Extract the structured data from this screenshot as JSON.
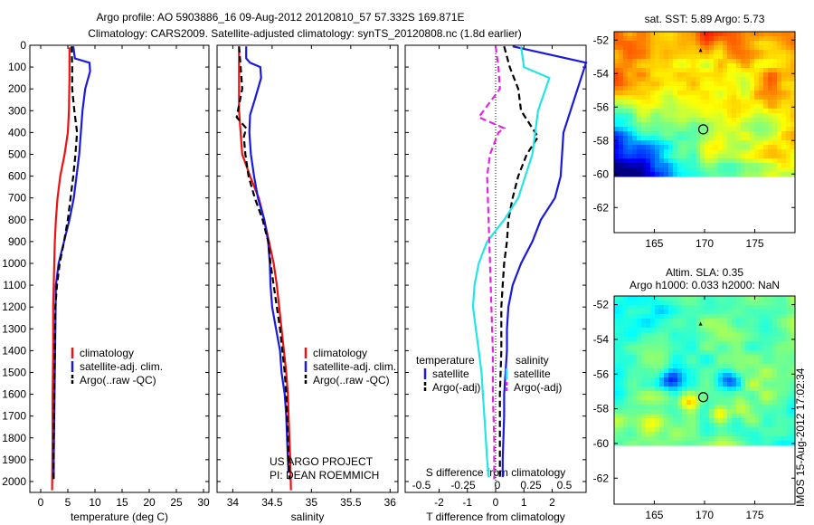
{
  "header": {
    "line1": "Argo profile: AO 5903886_16 09-Aug-2012 20120810_57 57.332S 169.871E",
    "line2": "Climatology: CARS2009. Satellite-adjusted climatology: synTS_20120808.nc (1.8d earlier)"
  },
  "credit": {
    "line1": "US ARGO PROJECT",
    "line2": "PI: DEAN ROEMMICH"
  },
  "side_stamp": "IMOS 15-Aug-2012 17:02:34",
  "colors": {
    "red": "#ee1111",
    "blue": "#1a1adc",
    "black": "#000000",
    "cyan": "#22e6e6",
    "magenta": "#e622e6"
  },
  "chart_data": [
    {
      "type": "line",
      "id": "temperature",
      "xlabel": "temperature (deg C)",
      "xlim": [
        -2,
        31
      ],
      "xticks": [
        "0",
        "5",
        "10",
        "15",
        "20",
        "25",
        "30"
      ],
      "ylim": [
        2050,
        0
      ],
      "yticks": [
        "0",
        "100",
        "200",
        "300",
        "400",
        "500",
        "600",
        "700",
        "800",
        "900",
        "1000",
        "1100",
        "1200",
        "1300",
        "1400",
        "1500",
        "1600",
        "1700",
        "1800",
        "1900",
        "2000"
      ],
      "legend": [
        "climatology",
        "satellite-adj. clim.",
        "Argo(..raw -QC)"
      ],
      "legend_position": "center",
      "series": [
        {
          "name": "climatology",
          "color": "red",
          "dash": false,
          "points": [
            [
              5.3,
              10
            ],
            [
              5.3,
              150
            ],
            [
              5.2,
              300
            ],
            [
              5.0,
              400
            ],
            [
              4.4,
              500
            ],
            [
              3.6,
              600
            ],
            [
              3.1,
              700
            ],
            [
              2.8,
              800
            ],
            [
              2.6,
              900
            ],
            [
              2.5,
              1000
            ],
            [
              2.4,
              1100
            ],
            [
              2.3,
              1200
            ],
            [
              2.3,
              1400
            ],
            [
              2.2,
              1600
            ],
            [
              2.2,
              1800
            ],
            [
              2.1,
              2040
            ]
          ]
        },
        {
          "name": "satellite-adj. clim.",
          "color": "blue",
          "dash": false,
          "points": [
            [
              6.0,
              5
            ],
            [
              6.3,
              60
            ],
            [
              9.0,
              80
            ],
            [
              9.1,
              120
            ],
            [
              8.2,
              200
            ],
            [
              7.7,
              300
            ],
            [
              7.4,
              400
            ],
            [
              7.1,
              500
            ],
            [
              6.6,
              600
            ],
            [
              6.1,
              700
            ],
            [
              5.3,
              800
            ],
            [
              4.3,
              900
            ],
            [
              3.3,
              1000
            ],
            [
              2.8,
              1100
            ],
            [
              2.7,
              1300
            ],
            [
              2.6,
              1500
            ],
            [
              2.5,
              1700
            ],
            [
              2.4,
              1900
            ],
            [
              2.4,
              1980
            ]
          ]
        },
        {
          "name": "Argo(..raw -QC)",
          "color": "black",
          "dash": true,
          "points": [
            [
              5.7,
              5
            ],
            [
              5.8,
              100
            ],
            [
              5.8,
              200
            ],
            [
              6.2,
              300
            ],
            [
              6.7,
              400
            ],
            [
              6.4,
              500
            ],
            [
              6.0,
              600
            ],
            [
              5.5,
              700
            ],
            [
              5.0,
              800
            ],
            [
              4.3,
              900
            ],
            [
              3.5,
              1000
            ],
            [
              3.0,
              1100
            ],
            [
              2.7,
              1200
            ],
            [
              2.6,
              1400
            ],
            [
              2.5,
              1600
            ],
            [
              2.4,
              1800
            ],
            [
              2.4,
              1990
            ]
          ]
        }
      ]
    },
    {
      "type": "line",
      "id": "salinity",
      "xlabel": "salinity",
      "xlim": [
        33.8,
        36.1
      ],
      "xticks": [
        "34",
        "34.5",
        "35",
        "35.5",
        "36"
      ],
      "ylim": [
        2050,
        0
      ],
      "legend": [
        "climatology",
        "satellite-adj. clim.",
        "Argo(..raw -QC)"
      ],
      "legend_position": "center",
      "series": [
        {
          "name": "climatology",
          "color": "red",
          "dash": false,
          "points": [
            [
              34.08,
              10
            ],
            [
              34.08,
              300
            ],
            [
              34.12,
              500
            ],
            [
              34.22,
              600
            ],
            [
              34.33,
              700
            ],
            [
              34.4,
              800
            ],
            [
              34.46,
              900
            ],
            [
              34.52,
              1000
            ],
            [
              34.56,
              1100
            ],
            [
              34.59,
              1200
            ],
            [
              34.62,
              1300
            ],
            [
              34.65,
              1400
            ],
            [
              34.68,
              1500
            ],
            [
              34.7,
              1600
            ],
            [
              34.71,
              1700
            ],
            [
              34.72,
              1800
            ],
            [
              34.73,
              1900
            ],
            [
              34.74,
              2040
            ]
          ]
        },
        {
          "name": "satellite-adj. clim.",
          "color": "blue",
          "dash": false,
          "points": [
            [
              34.17,
              5
            ],
            [
              34.17,
              60
            ],
            [
              34.22,
              80
            ],
            [
              34.35,
              100
            ],
            [
              34.36,
              150
            ],
            [
              34.28,
              250
            ],
            [
              34.22,
              320
            ],
            [
              34.21,
              400
            ],
            [
              34.23,
              500
            ],
            [
              34.27,
              600
            ],
            [
              34.32,
              700
            ],
            [
              34.4,
              800
            ],
            [
              34.45,
              900
            ],
            [
              34.47,
              1000
            ],
            [
              34.48,
              1100
            ],
            [
              34.5,
              1200
            ],
            [
              34.55,
              1300
            ],
            [
              34.6,
              1400
            ],
            [
              34.62,
              1500
            ],
            [
              34.66,
              1600
            ],
            [
              34.68,
              1700
            ],
            [
              34.69,
              1800
            ],
            [
              34.7,
              1900
            ],
            [
              34.71,
              1960
            ]
          ]
        },
        {
          "name": "Argo(..raw -QC)",
          "color": "black",
          "dash": true,
          "points": [
            [
              34.08,
              5
            ],
            [
              34.1,
              100
            ],
            [
              34.12,
              200
            ],
            [
              34.05,
              330
            ],
            [
              34.17,
              380
            ],
            [
              34.14,
              420
            ],
            [
              34.16,
              500
            ],
            [
              34.2,
              600
            ],
            [
              34.28,
              700
            ],
            [
              34.38,
              800
            ],
            [
              34.45,
              900
            ],
            [
              34.48,
              1000
            ],
            [
              34.52,
              1100
            ],
            [
              34.56,
              1200
            ],
            [
              34.6,
              1300
            ],
            [
              34.63,
              1400
            ],
            [
              34.66,
              1500
            ],
            [
              34.68,
              1600
            ],
            [
              34.69,
              1700
            ],
            [
              34.7,
              1800
            ],
            [
              34.71,
              1900
            ],
            [
              34.72,
              1990
            ]
          ]
        }
      ]
    },
    {
      "type": "line",
      "id": "difference",
      "xlabel": "T difference from climatology",
      "xlabel2": "S difference from climatology",
      "xlim": [
        -3.2,
        3.2
      ],
      "xticks": [
        "-2",
        "-1",
        "0",
        "1",
        "2"
      ],
      "xticks2": [
        "-0.5",
        "-0.25",
        "0",
        "0.25",
        "0.5"
      ],
      "ylim": [
        2050,
        0
      ],
      "legend_groups": [
        {
          "title": "temperature",
          "items": [
            "satellite",
            "Argo(-adj)"
          ]
        },
        {
          "title": "salinity",
          "items": [
            "satellite",
            "Argo(-adj)"
          ]
        }
      ],
      "series": [
        {
          "name": "temperature satellite",
          "color": "blue",
          "dash": false,
          "points": [
            [
              0.6,
              5
            ],
            [
              3.2,
              80
            ],
            [
              2.9,
              200
            ],
            [
              2.4,
              400
            ],
            [
              2.3,
              600
            ],
            [
              2.1,
              700
            ],
            [
              1.6,
              800
            ],
            [
              1.3,
              900
            ],
            [
              0.9,
              1000
            ],
            [
              0.6,
              1100
            ],
            [
              0.45,
              1200
            ],
            [
              0.4,
              1300
            ],
            [
              0.4,
              1400
            ],
            [
              0.3,
              1600
            ],
            [
              0.3,
              1700
            ],
            [
              0.25,
              1900
            ],
            [
              0.25,
              1980
            ]
          ]
        },
        {
          "name": "temperature Argo(-adj)",
          "color": "black",
          "dash": true,
          "points": [
            [
              0.3,
              5
            ],
            [
              0.5,
              100
            ],
            [
              0.8,
              200
            ],
            [
              0.9,
              300
            ],
            [
              1.5,
              420
            ],
            [
              1.1,
              500
            ],
            [
              0.8,
              600
            ],
            [
              0.6,
              700
            ],
            [
              0.45,
              800
            ],
            [
              0.4,
              900
            ],
            [
              0.3,
              1000
            ],
            [
              0.25,
              1100
            ],
            [
              0.2,
              1200
            ],
            [
              0.2,
              1400
            ],
            [
              0.15,
              1600
            ],
            [
              0.15,
              1800
            ],
            [
              0.15,
              1990
            ]
          ]
        },
        {
          "name": "salinity satellite",
          "color": "cyan",
          "dash": false,
          "points": [
            [
              0.9,
              5
            ],
            [
              1.0,
              100
            ],
            [
              1.9,
              150
            ],
            [
              1.5,
              300
            ],
            [
              1.3,
              500
            ],
            [
              0.8,
              700
            ],
            [
              0.3,
              800
            ],
            [
              -0.3,
              900
            ],
            [
              -0.6,
              1000
            ],
            [
              -0.75,
              1100
            ],
            [
              -0.8,
              1200
            ],
            [
              -0.7,
              1300
            ],
            [
              -0.6,
              1400
            ],
            [
              -0.5,
              1500
            ],
            [
              -0.45,
              1600
            ],
            [
              -0.4,
              1700
            ],
            [
              -0.35,
              1800
            ],
            [
              -0.3,
              1900
            ],
            [
              -0.25,
              1980
            ]
          ]
        },
        {
          "name": "salinity Argo(-adj)",
          "color": "magenta",
          "dash": true,
          "points": [
            [
              0.0,
              5
            ],
            [
              0.1,
              100
            ],
            [
              0.15,
              200
            ],
            [
              -0.6,
              330
            ],
            [
              0.3,
              380
            ],
            [
              0.1,
              400
            ],
            [
              -0.2,
              500
            ],
            [
              -0.3,
              600
            ],
            [
              -0.25,
              800
            ],
            [
              -0.2,
              1000
            ],
            [
              -0.15,
              1200
            ],
            [
              -0.1,
              1400
            ],
            [
              -0.1,
              1600
            ],
            [
              -0.05,
              1800
            ],
            [
              -0.05,
              1990
            ]
          ]
        }
      ]
    },
    {
      "type": "heatmap",
      "id": "sst-map",
      "title": "sat. SST: 5.89 Argo: 5.73",
      "xticks": [
        "165",
        "170",
        "175"
      ],
      "yticks": [
        "-52",
        "-54",
        "-56",
        "-58",
        "-60",
        "-62"
      ],
      "xlim": [
        161,
        179
      ],
      "ylim": [
        -63.5,
        -51.5
      ],
      "data_ylim": [
        -60,
        -51.5
      ],
      "profile_marker": {
        "lon": 169.87,
        "lat": -57.33
      },
      "triangle_marker": {
        "lon": 169.6,
        "lat": -52.6
      }
    },
    {
      "type": "heatmap",
      "id": "sla-map",
      "title": "Altim. SLA: 0.35",
      "subtitle": "Argo h1000: 0.033 h2000: NaN",
      "xticks": [
        "165",
        "170",
        "175"
      ],
      "yticks": [
        "-52",
        "-54",
        "-56",
        "-58",
        "-60",
        "-62"
      ],
      "xlim": [
        161,
        179
      ],
      "ylim": [
        -63.5,
        -51.5
      ],
      "data_ylim": [
        -60,
        -51.5
      ],
      "profile_marker": {
        "lon": 169.87,
        "lat": -57.33
      },
      "triangle_marker": {
        "lon": 169.6,
        "lat": -53.1
      }
    }
  ]
}
